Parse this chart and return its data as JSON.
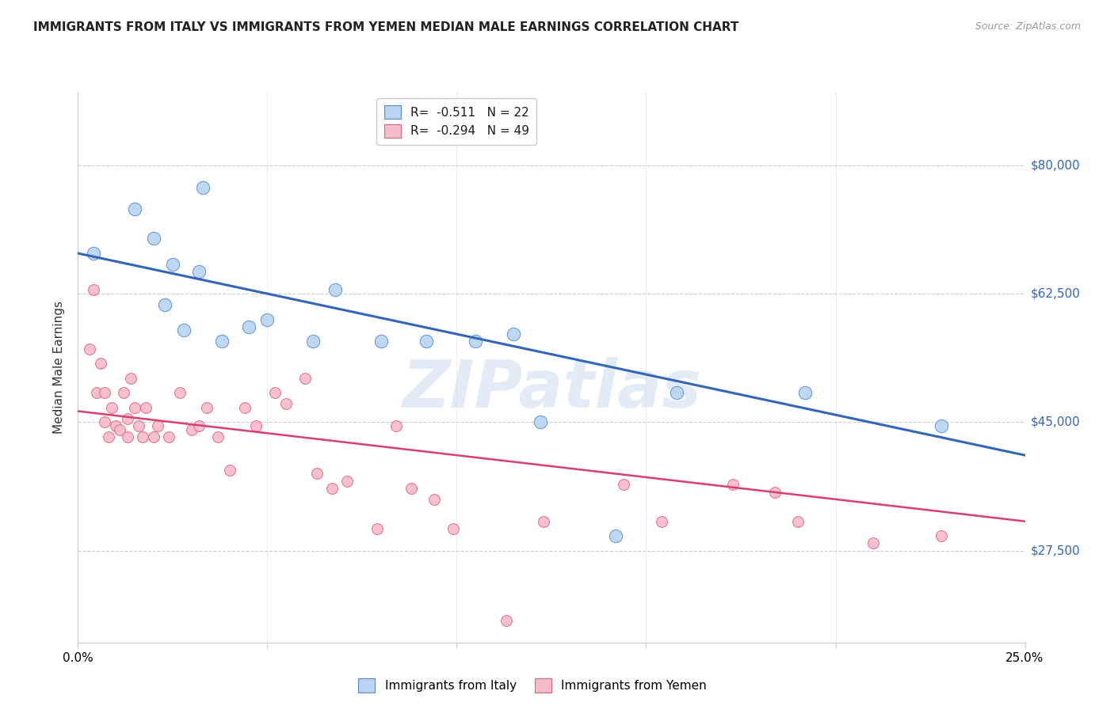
{
  "title": "IMMIGRANTS FROM ITALY VS IMMIGRANTS FROM YEMEN MEDIAN MALE EARNINGS CORRELATION CHART",
  "source": "Source: ZipAtlas.com",
  "ylabel": "Median Male Earnings",
  "yticks": [
    27500,
    45000,
    62500,
    80000
  ],
  "ytick_labels": [
    "$27,500",
    "$45,000",
    "$62,500",
    "$80,000"
  ],
  "xmin": 0.0,
  "xmax": 0.25,
  "ymin": 15000,
  "ymax": 90000,
  "legend_italy_r": "-0.511",
  "legend_italy_n": "22",
  "legend_yemen_r": "-0.294",
  "legend_yemen_n": "49",
  "legend_label_italy": "Immigrants from Italy",
  "legend_label_yemen": "Immigrants from Yemen",
  "italy_color": "#b8d4f0",
  "italy_edge_color": "#5588cc",
  "italy_line_color": "#3366bb",
  "yemen_color": "#f5bbc8",
  "yemen_edge_color": "#e06080",
  "yemen_line_color": "#d94070",
  "watermark_text": "ZIPatlas",
  "italy_scatter_x": [
    0.004,
    0.015,
    0.02,
    0.025,
    0.023,
    0.028,
    0.032,
    0.033,
    0.038,
    0.045,
    0.05,
    0.062,
    0.068,
    0.08,
    0.092,
    0.105,
    0.115,
    0.122,
    0.142,
    0.158,
    0.192,
    0.228
  ],
  "italy_scatter_y": [
    68000,
    74000,
    70000,
    66500,
    61000,
    57500,
    65500,
    77000,
    56000,
    58000,
    59000,
    56000,
    63000,
    56000,
    56000,
    56000,
    57000,
    45000,
    29500,
    49000,
    49000,
    44500
  ],
  "yemen_scatter_x": [
    0.003,
    0.004,
    0.005,
    0.006,
    0.007,
    0.007,
    0.008,
    0.009,
    0.01,
    0.011,
    0.012,
    0.013,
    0.013,
    0.014,
    0.015,
    0.016,
    0.017,
    0.018,
    0.02,
    0.021,
    0.024,
    0.027,
    0.03,
    0.032,
    0.034,
    0.037,
    0.04,
    0.044,
    0.047,
    0.052,
    0.055,
    0.06,
    0.063,
    0.067,
    0.071,
    0.079,
    0.084,
    0.088,
    0.094,
    0.099,
    0.113,
    0.123,
    0.144,
    0.154,
    0.173,
    0.184,
    0.19,
    0.21,
    0.228
  ],
  "yemen_scatter_y": [
    55000,
    63000,
    49000,
    53000,
    45000,
    49000,
    43000,
    47000,
    44500,
    44000,
    49000,
    45500,
    43000,
    51000,
    47000,
    44500,
    43000,
    47000,
    43000,
    44500,
    43000,
    49000,
    44000,
    44500,
    47000,
    43000,
    38500,
    47000,
    44500,
    49000,
    47500,
    51000,
    38000,
    36000,
    37000,
    30500,
    44500,
    36000,
    34500,
    30500,
    18000,
    31500,
    36500,
    31500,
    36500,
    35500,
    31500,
    28500,
    29500
  ],
  "italy_trendline_x": [
    0.0,
    0.25
  ],
  "italy_trendline_y": [
    68000,
    40500
  ],
  "yemen_trendline_x": [
    0.0,
    0.25
  ],
  "yemen_trendline_y": [
    46500,
    31500
  ],
  "scatter_size_italy": 140,
  "scatter_size_yemen": 100,
  "background_color": "#ffffff",
  "grid_color": "#cccccc",
  "spine_color": "#cccccc",
  "title_fontsize": 11,
  "tick_fontsize": 11,
  "ylabel_fontsize": 11,
  "legend_fontsize": 11
}
